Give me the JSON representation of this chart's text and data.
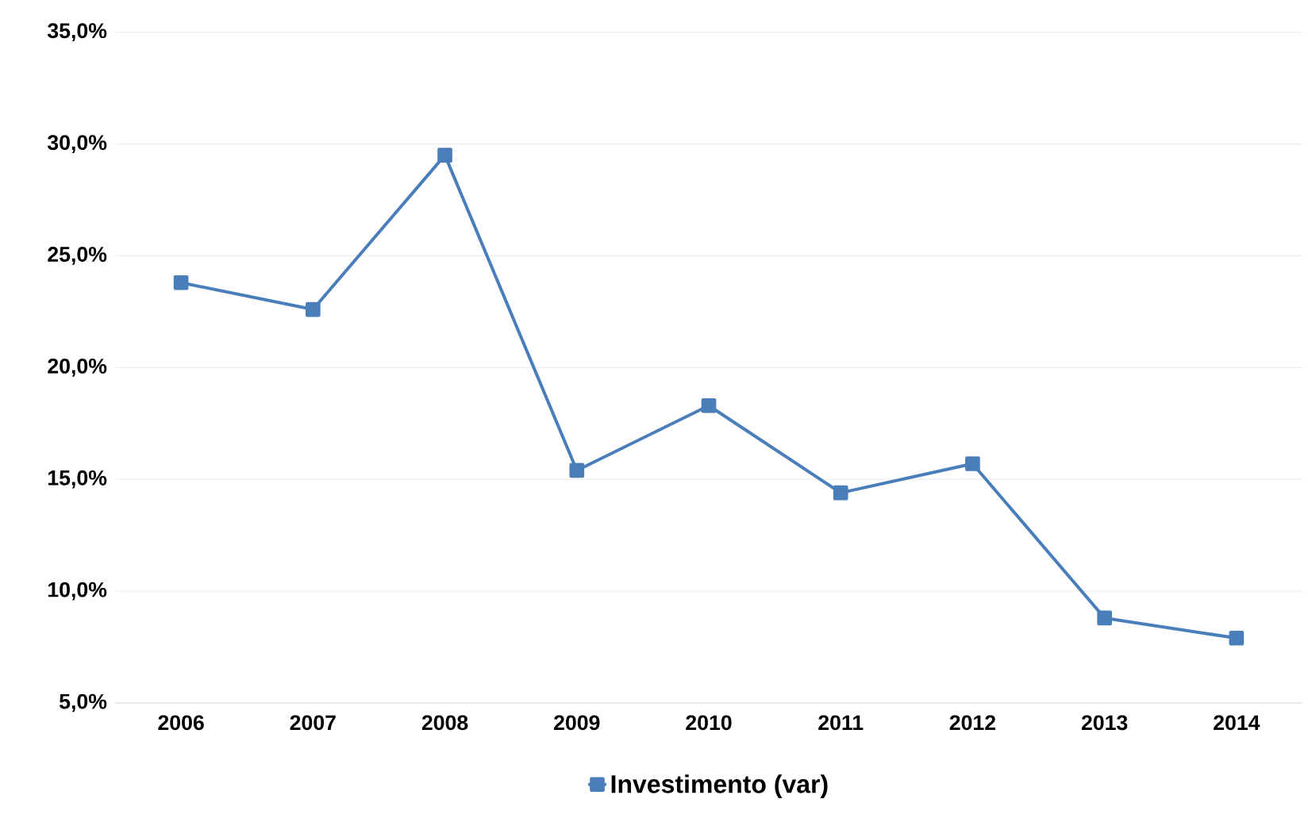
{
  "chart_data": {
    "type": "line",
    "categories": [
      "2006",
      "2007",
      "2008",
      "2009",
      "2010",
      "2011",
      "2012",
      "2013",
      "2014"
    ],
    "series": [
      {
        "name": "Investimento (var)",
        "color": "#4a7ebb",
        "values": [
          23.8,
          22.6,
          29.5,
          15.4,
          18.3,
          14.4,
          15.7,
          8.8,
          7.9
        ]
      }
    ],
    "ylim": [
      5,
      35
    ],
    "yticks": [
      {
        "value": 5,
        "label": "5,0%"
      },
      {
        "value": 10,
        "label": "10,0%"
      },
      {
        "value": 15,
        "label": "15,0%"
      },
      {
        "value": 20,
        "label": "20,0%"
      },
      {
        "value": 25,
        "label": "25,0%"
      },
      {
        "value": 30,
        "label": "30,0%"
      },
      {
        "value": 35,
        "label": "35,0%"
      }
    ],
    "grid": "y",
    "legend": "bottom",
    "marker": "square",
    "line_style": "solid"
  }
}
